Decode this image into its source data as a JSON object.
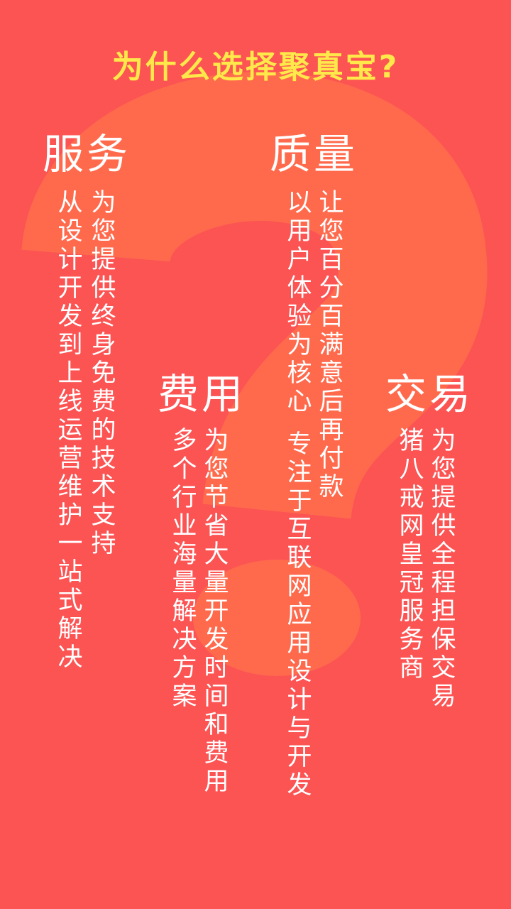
{
  "title": "为什么选择聚真宝?",
  "sections": {
    "service": {
      "heading": "服务",
      "col1": "为您提供终身免费的技术支持",
      "col2": "从设计开发到上线运营维护一站式解决"
    },
    "quality": {
      "heading": "质量",
      "col1": "让您百分百满意后再付款",
      "col2": "以用户体验为核心",
      "col3": "专注于互联网应用设计与开发"
    },
    "cost": {
      "heading": "费用",
      "col1": "为您节省大量开发时间和费用",
      "col2": "多个行业海量解决方案"
    },
    "trade": {
      "heading": "交易",
      "col1": "为您提供全程担保交易",
      "col2": "猪八戒网皇冠服务商"
    }
  },
  "colors": {
    "background": "#fc5353",
    "question_mark": "#ff6a4d",
    "title": "#ffe94a",
    "text": "#ffffff"
  },
  "icons": {
    "background": "question-mark-icon"
  }
}
